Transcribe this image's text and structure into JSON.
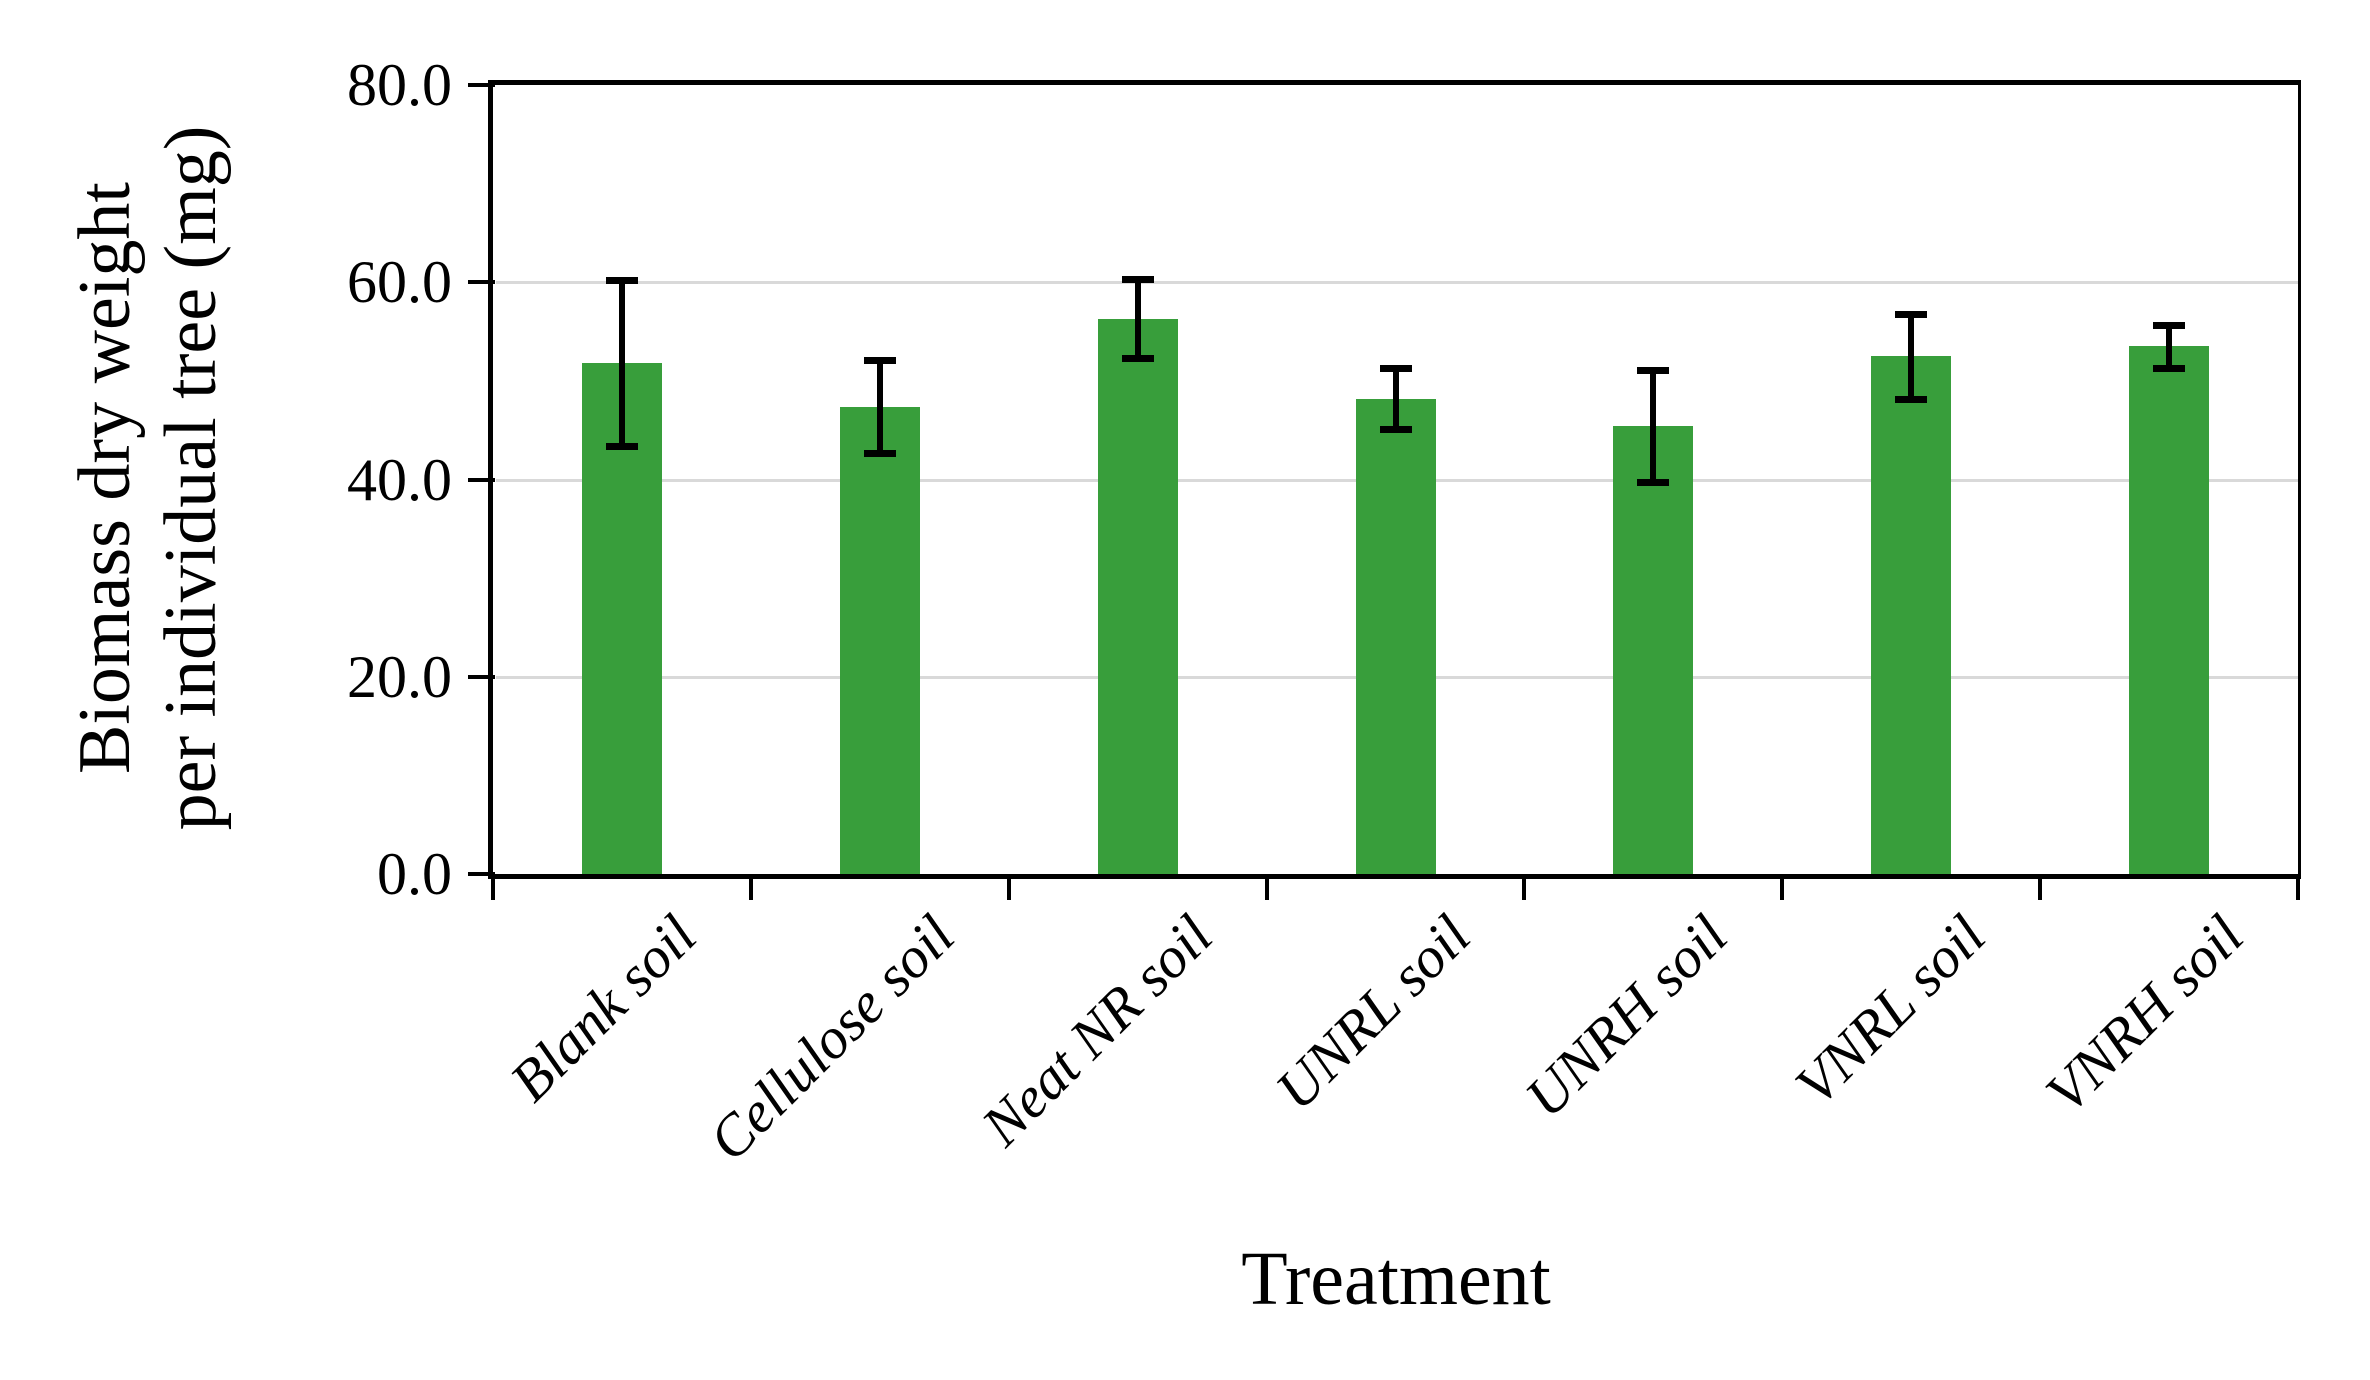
{
  "chart_data": {
    "type": "bar",
    "title": "",
    "xlabel": "Treatment",
    "ylabel_line1": "Biomass dry weight",
    "ylabel_line2": "per individual tree (mg)",
    "categories": [
      "Blank soil",
      "Cellulose soil",
      "Neat NR soil",
      "UNRL soil",
      "UNRH soil",
      "VNRL soil",
      "VNRH soil"
    ],
    "values": [
      51.8,
      47.4,
      56.3,
      48.2,
      45.4,
      52.5,
      53.5
    ],
    "error_bars": [
      8.4,
      4.7,
      4.0,
      3.1,
      5.7,
      4.3,
      2.2
    ],
    "ylim": [
      0,
      80
    ],
    "yticks": [
      {
        "value": 80,
        "label": "80.0"
      },
      {
        "value": 60,
        "label": "60.0"
      },
      {
        "value": 40,
        "label": "40.0"
      },
      {
        "value": 20,
        "label": "20.0"
      },
      {
        "value": 0,
        "label": "0.0"
      }
    ],
    "grid": "horizontal-light-gray",
    "legend": "none",
    "bar_color": "#389e3b",
    "error_color": "#000000",
    "gridline_color": "#d9d9d9",
    "axis_color": "#000000",
    "background_color": "#ffffff",
    "x_label_rotation_deg": 45,
    "x_label_style": "italic"
  }
}
